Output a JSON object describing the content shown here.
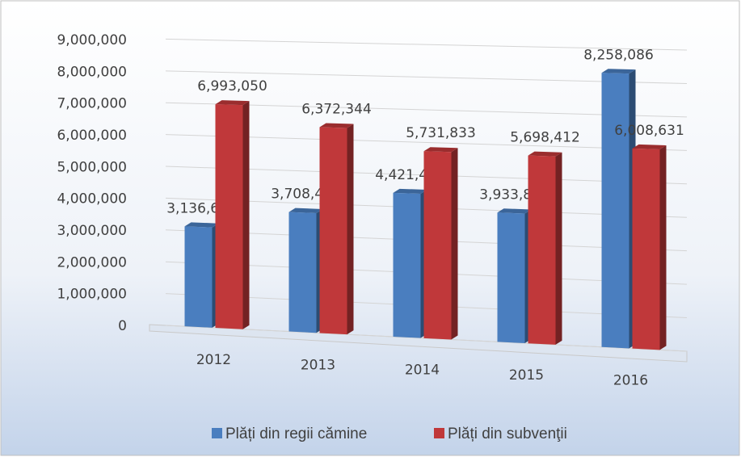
{
  "chart_data": {
    "type": "bar3d",
    "categories": [
      "2012",
      "2013",
      "2014",
      "2015",
      "2016"
    ],
    "series": [
      {
        "name": "Plăți din regii cămine",
        "color": "#4a7ebf",
        "values": [
          3136630,
          3708469,
          4421481,
          3933831,
          8258086
        ],
        "value_labels": [
          "3,136,630",
          "3,708,469",
          "4,421,481",
          "3,933,831",
          "8,258,086"
        ]
      },
      {
        "name": "Plăți din subvenţii",
        "color": "#c0383a",
        "values": [
          6993050,
          6372344,
          5731833,
          5698412,
          6008631
        ],
        "value_labels": [
          "6,993,050",
          "6,372,344",
          "5,731,833",
          "5,698,412",
          "6,008,631"
        ]
      }
    ],
    "ylim": [
      0,
      9000000
    ],
    "yticks": [
      0,
      {
        "value": 1000000,
        "label": "1,000,000"
      },
      {
        "value": 2000000,
        "label": "2,000,000"
      },
      {
        "value": 3000000,
        "label": "3,000,000"
      },
      {
        "value": 4000000,
        "label": "4,000,000"
      },
      {
        "value": 5000000,
        "label": "5,000,000"
      },
      {
        "value": 6000000,
        "label": "6,000,000"
      },
      {
        "value": 7000000,
        "label": "7,000,000"
      },
      {
        "value": 8000000,
        "label": "8,000,000"
      },
      {
        "value": 9000000,
        "label": "9,000,000"
      }
    ],
    "grid": true,
    "legend": "bottom"
  }
}
